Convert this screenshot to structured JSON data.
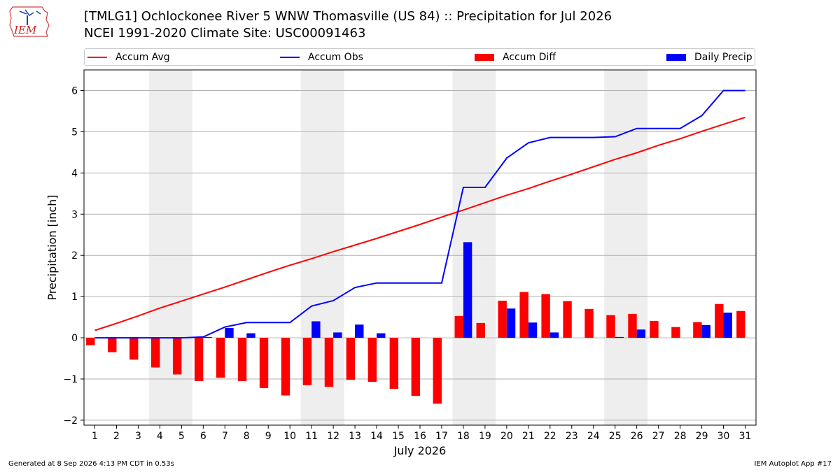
{
  "logo": {
    "text": "IEM"
  },
  "title": {
    "line1": "[TMLG1] Ochlockonee River 5 WNW Thomasville (US 84) :: Precipitation for Jul 2026",
    "line2": "NCEI 1991-2020 Climate Site: USC00091463"
  },
  "footer": {
    "left": "Generated at 8 Sep 2026 4:13 PM CDT in 0.53s",
    "right": "IEM Autoplot App #17"
  },
  "colors": {
    "avg": "#ff0000",
    "obs": "#0000ff",
    "diff": "#ff0000",
    "daily": "#0000ff",
    "weekend": "#eeeeee",
    "grid": "#b0b0b0"
  },
  "chart_data": {
    "type": "bar",
    "xlabel": "July 2026",
    "ylabel": "Precipitation [inch]",
    "ylim": [
      -2.12,
      6.5
    ],
    "yticks": [
      -2,
      -1,
      0,
      1,
      2,
      3,
      4,
      5,
      6
    ],
    "xticks": [
      "1",
      "2",
      "3",
      "4",
      "5",
      "6",
      "7",
      "8",
      "9",
      "10",
      "11",
      "12",
      "13",
      "14",
      "15",
      "16",
      "17",
      "18",
      "19",
      "20",
      "21",
      "22",
      "23",
      "24",
      "25",
      "26",
      "27",
      "28",
      "29",
      "30",
      "31"
    ],
    "grid": "y",
    "legend": {
      "placement": "top",
      "entries": [
        "Accum Avg",
        "Accum Obs",
        "Accum Diff",
        "Daily Precip"
      ]
    },
    "shaded_days": [
      [
        4,
        5
      ],
      [
        11,
        12
      ],
      [
        18,
        19
      ],
      [
        25,
        26
      ]
    ],
    "x": [
      1,
      2,
      3,
      4,
      5,
      6,
      7,
      8,
      9,
      10,
      11,
      12,
      13,
      14,
      15,
      16,
      17,
      18,
      19,
      20,
      21,
      22,
      23,
      24,
      25,
      26,
      27,
      28,
      29,
      30,
      31
    ],
    "series": [
      {
        "name": "Accum Avg",
        "kind": "line",
        "values": [
          0.18,
          0.35,
          0.53,
          0.72,
          0.89,
          1.06,
          1.23,
          1.41,
          1.59,
          1.76,
          1.92,
          2.09,
          2.25,
          2.41,
          2.58,
          2.75,
          2.93,
          3.1,
          3.28,
          3.46,
          3.62,
          3.8,
          3.97,
          4.15,
          4.33,
          4.49,
          4.67,
          4.83,
          5.01,
          5.18,
          5.35
        ]
      },
      {
        "name": "Accum Obs",
        "kind": "line",
        "values": [
          0.0,
          0.0,
          0.0,
          0.0,
          0.0,
          0.02,
          0.26,
          0.37,
          0.37,
          0.37,
          0.77,
          0.9,
          1.22,
          1.33,
          1.33,
          1.33,
          1.33,
          3.65,
          3.65,
          4.36,
          4.73,
          4.86,
          4.86,
          4.86,
          4.88,
          5.08,
          5.08,
          5.08,
          5.39,
          6.0,
          6.0
        ]
      },
      {
        "name": "Accum Diff",
        "kind": "bar",
        "values": [
          -0.18,
          -0.35,
          -0.53,
          -0.72,
          -0.89,
          -1.05,
          -0.97,
          -1.05,
          -1.22,
          -1.4,
          -1.15,
          -1.19,
          -1.02,
          -1.07,
          -1.24,
          -1.41,
          -1.6,
          0.53,
          0.36,
          0.9,
          1.11,
          1.06,
          0.89,
          0.7,
          0.55,
          0.58,
          0.41,
          0.26,
          0.38,
          0.82,
          0.65
        ]
      },
      {
        "name": "Daily Precip",
        "kind": "bar",
        "values": [
          0.0,
          0.0,
          0.0,
          0.0,
          0.0,
          0.02,
          0.24,
          0.11,
          0.0,
          0.0,
          0.4,
          0.13,
          0.32,
          0.11,
          0.0,
          0.0,
          0.0,
          2.32,
          0.0,
          0.71,
          0.37,
          0.13,
          0.0,
          0.0,
          0.02,
          0.2,
          0.0,
          0.0,
          0.31,
          0.61,
          0.0
        ]
      }
    ]
  }
}
